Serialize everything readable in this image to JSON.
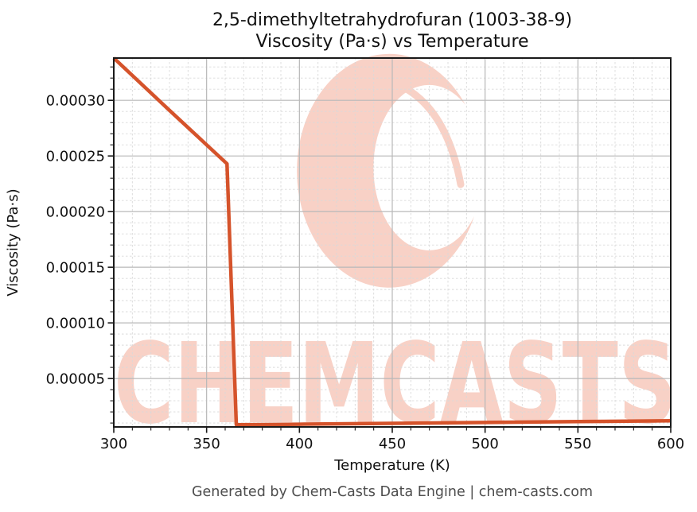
{
  "watermark": {
    "text": "CHEMCASTS",
    "logo_icon": "chemcasts-c-swoosh",
    "color": "#f8d1c6"
  },
  "footer": {
    "text": "Generated by Chem-Casts Data Engine | chem-casts.com"
  },
  "chart_data": {
    "type": "line",
    "title": "2,5-dimethyltetrahydrofuran (1003-38-9)",
    "subtitle": "Viscosity (Pa·s) vs Temperature",
    "xlabel": "Temperature (K)",
    "ylabel": "Viscosity (Pa·s)",
    "xlim": [
      300,
      600
    ],
    "ylim": [
      6.5e-06,
      0.000338
    ],
    "x_ticks": [
      300,
      350,
      400,
      450,
      500,
      550,
      600
    ],
    "x_tick_labels": [
      "300",
      "350",
      "400",
      "450",
      "500",
      "550",
      "600"
    ],
    "x_minor_step": 10,
    "y_ticks": [
      5e-05,
      0.0001,
      0.00015,
      0.0002,
      0.00025,
      0.0003
    ],
    "y_tick_labels": [
      "0.00005",
      "0.00010",
      "0.00015",
      "0.00020",
      "0.00025",
      "0.00030"
    ],
    "y_minor_step": 1e-05,
    "grid": "both",
    "legend": "none",
    "line_color": "#d5532b",
    "major_grid_color": "#b8b8b8",
    "minor_grid_color": "#d9d9d9",
    "series": [
      {
        "name": "viscosity",
        "points": [
          [
            300,
            0.000338
          ],
          [
            330,
            0.000291
          ],
          [
            361,
            0.000243
          ],
          [
            366,
            8.4e-06
          ],
          [
            400,
            8.9e-06
          ],
          [
            450,
            9.7e-06
          ],
          [
            500,
            1.05e-05
          ],
          [
            550,
            1.13e-05
          ],
          [
            600,
            1.2e-05
          ]
        ]
      }
    ]
  }
}
